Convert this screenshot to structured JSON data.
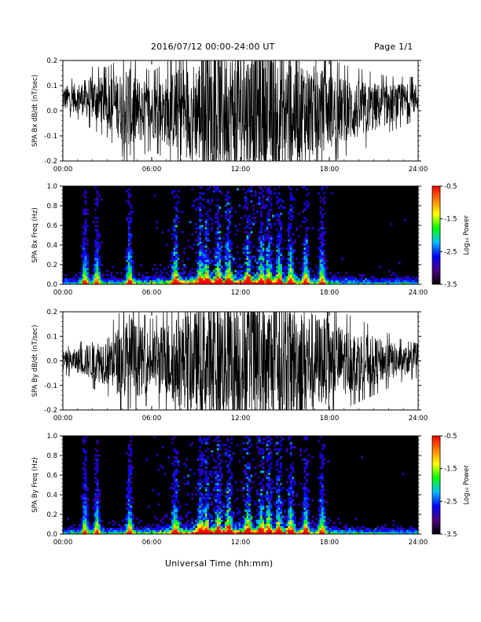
{
  "header": {
    "title": "2016/07/12  00:00-24:00 UT",
    "page": "Page 1/1"
  },
  "footer": {
    "xlabel": "Universal Time (hh:mm)"
  },
  "colors": {
    "trace": "#000000",
    "spectrogram_background": "#000000",
    "colormap": [
      "#000000",
      "#4b0082",
      "#0000ff",
      "#00bfff",
      "#00ff00",
      "#ffff00",
      "#ff7f00",
      "#ff0000"
    ]
  },
  "chart_data": [
    {
      "type": "line",
      "ylabel": "SPA Bx dB/dt (nT/sec)",
      "xlim_hours": [
        0,
        24
      ],
      "ylim": [
        -0.2,
        0.2
      ],
      "yticks": [
        "0.2",
        "0.1",
        "0.0",
        "-0.1",
        "-0.2"
      ],
      "xticks": [
        "00:00",
        "06:00",
        "12:00",
        "18:00",
        "24:00"
      ],
      "amplitude_envelope": {
        "hours": [
          0,
          1,
          2,
          3,
          4,
          4.5,
          5,
          6,
          7,
          8,
          9,
          9.5,
          10,
          11,
          12,
          13,
          14,
          15,
          16,
          17,
          18,
          19,
          20,
          21,
          22,
          23,
          24
        ],
        "half_width": [
          0.05,
          0.06,
          0.09,
          0.1,
          0.14,
          0.2,
          0.14,
          0.11,
          0.14,
          0.18,
          0.2,
          0.25,
          0.25,
          0.25,
          0.25,
          0.25,
          0.25,
          0.25,
          0.22,
          0.18,
          0.15,
          0.13,
          0.12,
          0.1,
          0.08,
          0.07,
          0.06
        ]
      },
      "baseline": 0.05
    },
    {
      "type": "heatmap",
      "ylabel": "SPA Bx Freq (Hz)",
      "xlim_hours": [
        0,
        24
      ],
      "ylim": [
        0.0,
        1.0
      ],
      "yticks": [
        "1.0",
        "0.8",
        "0.6",
        "0.4",
        "0.2",
        "0.0"
      ],
      "xticks": [
        "00:00",
        "06:00",
        "12:00",
        "18:00",
        "24:00"
      ],
      "colorbar": {
        "label": "Log₁₀ Power",
        "ticks": [
          "-0.5",
          "-1.5",
          "-2.5",
          "-3.5"
        ],
        "range": [
          -3.5,
          -0.5
        ]
      },
      "bursts_hours": [
        1.5,
        2.3,
        4.5,
        7.6,
        9.3,
        9.7,
        10.5,
        11.2,
        12.5,
        13.4,
        13.9,
        14.6,
        15.4,
        16.4,
        17.5
      ]
    },
    {
      "type": "line",
      "ylabel": "SPA By dB/dt (nT/sec)",
      "xlim_hours": [
        0,
        24
      ],
      "ylim": [
        -0.2,
        0.2
      ],
      "yticks": [
        "0.2",
        "0.1",
        "0.0",
        "-0.1",
        "-0.2"
      ],
      "xticks": [
        "00:00",
        "06:00",
        "12:00",
        "18:00",
        "24:00"
      ],
      "amplitude_envelope": {
        "hours": [
          0,
          1,
          2,
          3,
          4,
          4.5,
          5,
          6,
          7,
          8,
          9,
          9.5,
          10,
          11,
          12,
          13,
          14,
          15,
          16,
          17,
          18,
          19,
          20,
          21,
          22,
          23,
          24
        ],
        "half_width": [
          0.04,
          0.05,
          0.08,
          0.1,
          0.15,
          0.2,
          0.15,
          0.12,
          0.16,
          0.19,
          0.21,
          0.25,
          0.25,
          0.25,
          0.25,
          0.25,
          0.25,
          0.25,
          0.23,
          0.2,
          0.17,
          0.14,
          0.12,
          0.1,
          0.08,
          0.06,
          0.05
        ]
      },
      "baseline": 0.0
    },
    {
      "type": "heatmap",
      "ylabel": "SPA By Freq (Hz)",
      "xlim_hours": [
        0,
        24
      ],
      "ylim": [
        0.0,
        1.0
      ],
      "yticks": [
        "1.0",
        "0.8",
        "0.6",
        "0.4",
        "0.2",
        "0.0"
      ],
      "xticks": [
        "00:00",
        "06:00",
        "12:00",
        "18:00",
        "24:00"
      ],
      "colorbar": {
        "label": "Log₁₀ Power",
        "ticks": [
          "-0.5",
          "-1.5",
          "-2.5",
          "-3.5"
        ],
        "range": [
          -3.5,
          -0.5
        ]
      },
      "bursts_hours": [
        1.5,
        2.3,
        4.5,
        7.6,
        9.3,
        9.7,
        10.5,
        11.2,
        12.5,
        13.4,
        13.9,
        14.6,
        15.4,
        16.4,
        17.5
      ]
    }
  ]
}
